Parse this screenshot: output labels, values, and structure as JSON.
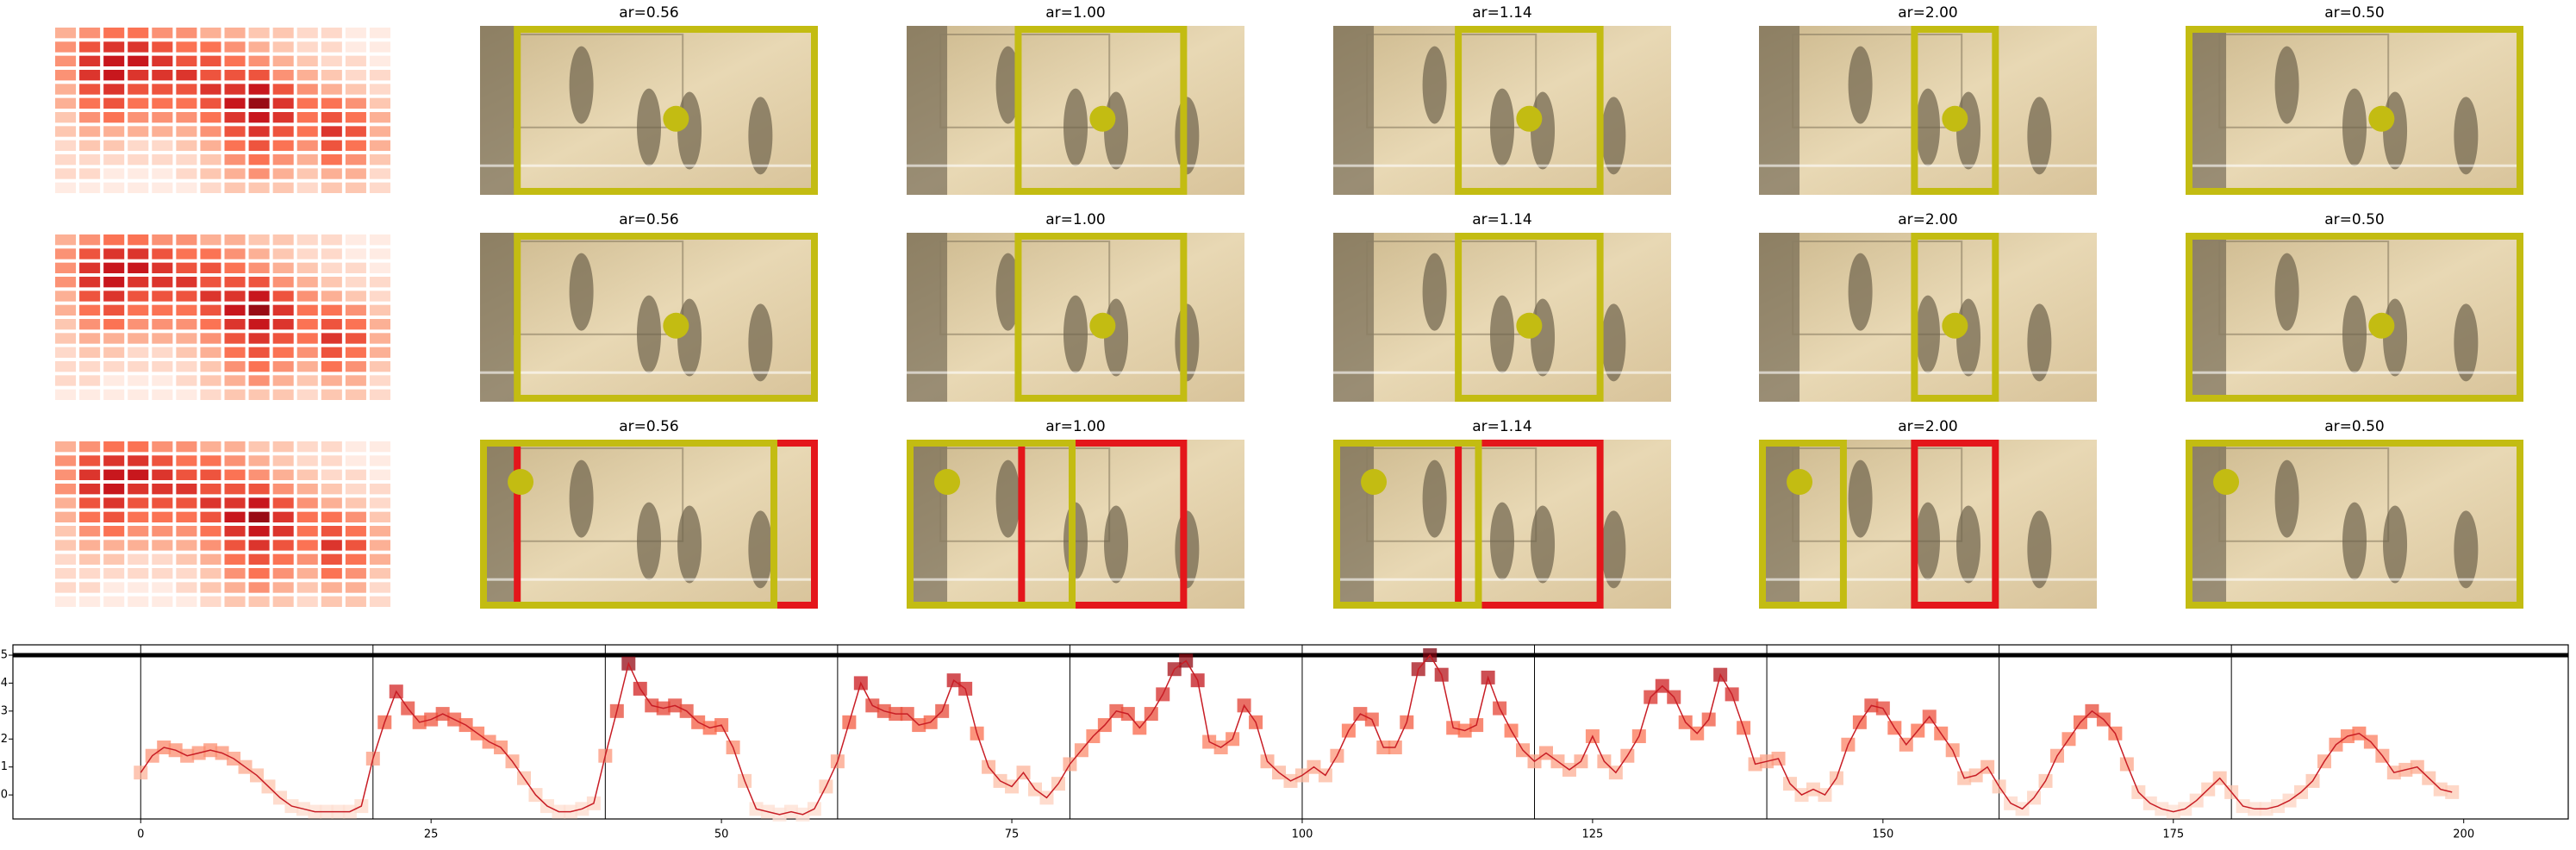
{
  "rows": [
    {
      "titles": [
        "ar=0.56",
        "ar=1.00",
        "ar=1.14",
        "ar=2.00",
        "ar=0.50"
      ]
    },
    {
      "titles": [
        "ar=0.56",
        "ar=1.00",
        "ar=1.14",
        "ar=2.00",
        "ar=0.50"
      ]
    },
    {
      "titles": [
        "ar=0.56",
        "ar=1.00",
        "ar=1.14",
        "ar=2.00",
        "ar=0.50"
      ]
    }
  ],
  "heatmap": [
    [
      3,
      4,
      5,
      5,
      4,
      4,
      3,
      3,
      2,
      2,
      1,
      1,
      0,
      0
    ],
    [
      4,
      6,
      7,
      7,
      6,
      5,
      5,
      4,
      3,
      2,
      1,
      1,
      0,
      0
    ],
    [
      4,
      7,
      8,
      8,
      7,
      6,
      6,
      5,
      4,
      3,
      2,
      1,
      1,
      0
    ],
    [
      4,
      7,
      8,
      7,
      7,
      7,
      6,
      6,
      6,
      4,
      3,
      2,
      1,
      1
    ],
    [
      3,
      6,
      7,
      6,
      6,
      6,
      7,
      7,
      8,
      6,
      4,
      3,
      2,
      1
    ],
    [
      3,
      5,
      6,
      5,
      5,
      5,
      6,
      8,
      9,
      7,
      5,
      5,
      4,
      2
    ],
    [
      2,
      4,
      5,
      4,
      4,
      4,
      5,
      7,
      8,
      7,
      5,
      6,
      5,
      3
    ],
    [
      2,
      3,
      3,
      3,
      3,
      3,
      4,
      6,
      7,
      6,
      5,
      7,
      6,
      3
    ],
    [
      1,
      2,
      2,
      1,
      1,
      2,
      3,
      5,
      6,
      5,
      4,
      6,
      5,
      3
    ],
    [
      1,
      1,
      1,
      1,
      1,
      1,
      2,
      4,
      5,
      4,
      3,
      5,
      4,
      2
    ],
    [
      1,
      1,
      0,
      0,
      0,
      1,
      2,
      3,
      4,
      3,
      2,
      3,
      3,
      1
    ],
    [
      0,
      0,
      0,
      0,
      0,
      0,
      1,
      2,
      2,
      2,
      1,
      2,
      2,
      1
    ]
  ],
  "chart_data": {
    "type": "line",
    "x": [
      0,
      1,
      2,
      3,
      4,
      5,
      6,
      7,
      8,
      9,
      10,
      11,
      12,
      13,
      14,
      15,
      16,
      17,
      18,
      19,
      20,
      21,
      22,
      23,
      24,
      25,
      26,
      27,
      28,
      29,
      30,
      31,
      32,
      33,
      34,
      35,
      36,
      37,
      38,
      39,
      40,
      41,
      42,
      43,
      44,
      45,
      46,
      47,
      48,
      49,
      50,
      51,
      52,
      53,
      54,
      55,
      56,
      57,
      58,
      59,
      60,
      61,
      62,
      63,
      64,
      65,
      66,
      67,
      68,
      69,
      70,
      71,
      72,
      73,
      74,
      75,
      76,
      77,
      78,
      79,
      80,
      81,
      82,
      83,
      84,
      85,
      86,
      87,
      88,
      89,
      90,
      91,
      92,
      93,
      94,
      95,
      96,
      97,
      98,
      99,
      100,
      101,
      102,
      103,
      104,
      105,
      106,
      107,
      108,
      109,
      110,
      111,
      112,
      113,
      114,
      115,
      116,
      117,
      118,
      119,
      120,
      121,
      122,
      123,
      124,
      125,
      126,
      127,
      128,
      129,
      130,
      131,
      132,
      133,
      134,
      135,
      136,
      137,
      138,
      139,
      140,
      141,
      142,
      143,
      144,
      145,
      146,
      147,
      148,
      149,
      150,
      151,
      152,
      153,
      154,
      155,
      156,
      157,
      158,
      159,
      160,
      161,
      162,
      163,
      164,
      165,
      166,
      167,
      168,
      169,
      170,
      171,
      172,
      173,
      174,
      175,
      176,
      177,
      178,
      179,
      180,
      181,
      182,
      183,
      184,
      185,
      186,
      187,
      188,
      189,
      190,
      191,
      192,
      193,
      194,
      195,
      196,
      197,
      198,
      199
    ],
    "series": [
      {
        "color": "#c81d25",
        "values": [
          0.8,
          1.4,
          1.7,
          1.6,
          1.4,
          1.5,
          1.6,
          1.5,
          1.3,
          1.0,
          0.7,
          0.3,
          -0.1,
          -0.4,
          -0.5,
          -0.6,
          -0.6,
          -0.6,
          -0.6,
          -0.4,
          1.3,
          2.6,
          3.7,
          3.1,
          2.6,
          2.7,
          2.9,
          2.7,
          2.5,
          2.2,
          1.9,
          1.7,
          1.2,
          0.6,
          0.0,
          -0.4,
          -0.6,
          -0.6,
          -0.5,
          -0.3,
          1.4,
          3.0,
          4.7,
          3.8,
          3.2,
          3.1,
          3.2,
          3.0,
          2.6,
          2.4,
          2.5,
          1.7,
          0.5,
          -0.5,
          -0.6,
          -0.7,
          -0.6,
          -0.7,
          -0.5,
          0.3,
          1.2,
          2.6,
          4.0,
          3.2,
          3.0,
          2.9,
          2.9,
          2.5,
          2.6,
          3.0,
          4.1,
          3.8,
          2.2,
          1.0,
          0.5,
          0.3,
          0.8,
          0.2,
          -0.1,
          0.4,
          1.1,
          1.6,
          2.1,
          2.5,
          3.0,
          2.9,
          2.4,
          2.9,
          3.6,
          4.5,
          4.8,
          4.1,
          1.9,
          1.7,
          2.0,
          3.2,
          2.6,
          1.2,
          0.8,
          0.5,
          0.7,
          1.0,
          0.7,
          1.4,
          2.3,
          2.9,
          2.7,
          1.7,
          1.7,
          2.6,
          4.5,
          5.0,
          4.3,
          2.4,
          2.3,
          2.5,
          4.2,
          3.1,
          2.3,
          1.6,
          1.2,
          1.5,
          1.2,
          0.9,
          1.2,
          2.1,
          1.2,
          0.8,
          1.4,
          2.1,
          3.5,
          3.9,
          3.5,
          2.6,
          2.2,
          2.7,
          4.3,
          3.6,
          2.4,
          1.1,
          1.2,
          1.3,
          0.4,
          0.0,
          0.2,
          0.0,
          0.6,
          1.8,
          2.6,
          3.2,
          3.1,
          2.4,
          1.8,
          2.3,
          2.8,
          2.2,
          1.6,
          0.6,
          0.7,
          1.0,
          0.3,
          -0.3,
          -0.5,
          -0.1,
          0.5,
          1.4,
          2.0,
          2.6,
          3.0,
          2.7,
          2.2,
          1.1,
          0.1,
          -0.3,
          -0.5,
          -0.6,
          -0.5,
          -0.2,
          0.2,
          0.6,
          0.1,
          -0.4,
          -0.5,
          -0.5,
          -0.4,
          -0.2,
          0.1,
          0.5,
          1.2,
          1.8,
          2.1,
          2.2,
          1.9,
          1.4,
          0.8,
          0.9,
          1.0,
          0.6,
          0.2,
          0.1
        ]
      }
    ],
    "xlim": [
      -11,
      209
    ],
    "ylim": [
      -0.86,
      5.37
    ],
    "xticks": [
      0,
      25,
      50,
      75,
      100,
      125,
      150,
      175,
      200
    ],
    "yticks": [
      0,
      1,
      2,
      3,
      4,
      5
    ],
    "vlines": [
      0,
      20,
      40,
      60,
      80,
      100,
      120,
      140,
      160,
      180
    ],
    "hline": 5
  }
}
